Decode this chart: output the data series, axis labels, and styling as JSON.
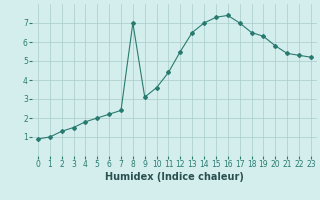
{
  "x": [
    0,
    1,
    2,
    3,
    4,
    5,
    6,
    7,
    8,
    9,
    10,
    11,
    12,
    13,
    14,
    15,
    16,
    17,
    18,
    19,
    20,
    21,
    22,
    23
  ],
  "y": [
    0.9,
    1.0,
    1.3,
    1.5,
    1.8,
    2.0,
    2.2,
    2.4,
    7.0,
    3.1,
    3.6,
    4.4,
    5.5,
    6.5,
    7.0,
    7.3,
    7.4,
    7.0,
    6.5,
    6.3,
    5.8,
    5.4,
    5.3,
    5.2
  ],
  "line_color": "#2a7b6f",
  "marker": "D",
  "marker_size": 2.0,
  "bg_color": "#d4eeee",
  "grid_color": "#aacccc",
  "xlabel": "Humidex (Indice chaleur)",
  "xlim": [
    -0.5,
    23.5
  ],
  "ylim": [
    0,
    8
  ],
  "yticks": [
    1,
    2,
    3,
    4,
    5,
    6,
    7
  ],
  "xticks": [
    0,
    1,
    2,
    3,
    4,
    5,
    6,
    7,
    8,
    9,
    10,
    11,
    12,
    13,
    14,
    15,
    16,
    17,
    18,
    19,
    20,
    21,
    22,
    23
  ],
  "tick_label_fontsize": 5.5,
  "xlabel_fontsize": 7.0,
  "line_width": 0.8
}
